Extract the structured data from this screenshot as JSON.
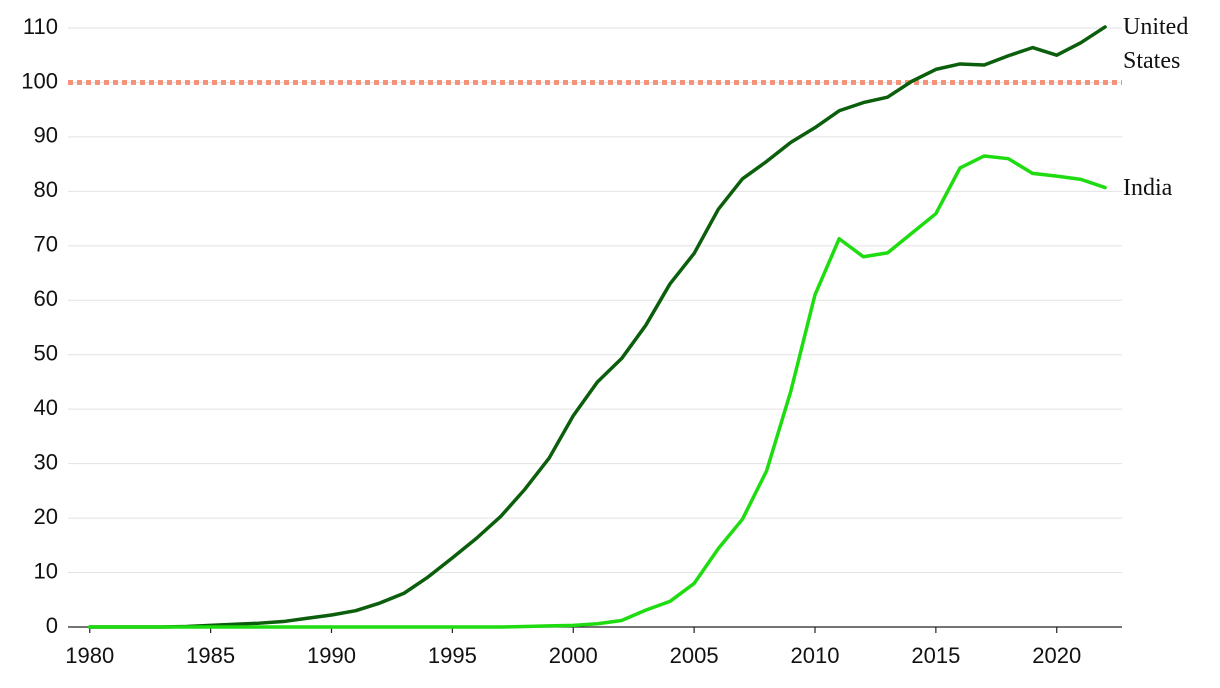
{
  "chart_data": {
    "type": "line",
    "x": [
      1980,
      1981,
      1982,
      1983,
      1984,
      1985,
      1986,
      1987,
      1988,
      1989,
      1990,
      1991,
      1992,
      1993,
      1994,
      1995,
      1996,
      1997,
      1998,
      1999,
      2000,
      2001,
      2002,
      2003,
      2004,
      2005,
      2006,
      2007,
      2008,
      2009,
      2010,
      2011,
      2012,
      2013,
      2014,
      2015,
      2016,
      2017,
      2018,
      2019,
      2020,
      2021,
      2022
    ],
    "series": [
      {
        "name": "United States",
        "color": "#0b5e0b",
        "values": [
          0,
          0,
          0,
          0,
          0.1,
          0.3,
          0.5,
          0.7,
          1.0,
          1.6,
          2.2,
          3.0,
          4.4,
          6.2,
          9.2,
          12.7,
          16.3,
          20.3,
          25.3,
          31.0,
          38.8,
          45.0,
          49.3,
          55.4,
          63.0,
          68.6,
          76.7,
          82.3,
          85.5,
          89.0,
          91.7,
          94.8,
          96.3,
          97.3,
          100.2,
          102.4,
          103.4,
          103.2,
          104.9,
          106.4,
          105.0,
          107.3,
          110.2
        ]
      },
      {
        "name": "India",
        "color": "#1edc10",
        "values": [
          0,
          0,
          0,
          0,
          0,
          0,
          0,
          0,
          0,
          0,
          0,
          0,
          0,
          0,
          0,
          0,
          0,
          0,
          0.1,
          0.2,
          0.3,
          0.6,
          1.2,
          3.1,
          4.7,
          8.0,
          14.4,
          19.8,
          28.7,
          43.3,
          61.0,
          71.3,
          68.0,
          68.7,
          72.3,
          75.9,
          84.3,
          86.5,
          86.0,
          83.3,
          82.8,
          82.2,
          80.7
        ]
      }
    ],
    "reference_line": {
      "value": 100,
      "color": "#f4937a"
    },
    "xlim": [
      1979.1,
      2022.7
    ],
    "xticks": [
      1980,
      1985,
      1990,
      1995,
      2000,
      2005,
      2010,
      2015,
      2020
    ],
    "ylim": [
      0,
      110
    ],
    "yticks": [
      0,
      10,
      20,
      30,
      40,
      50,
      60,
      70,
      80,
      90,
      100,
      110
    ],
    "grid": true
  }
}
